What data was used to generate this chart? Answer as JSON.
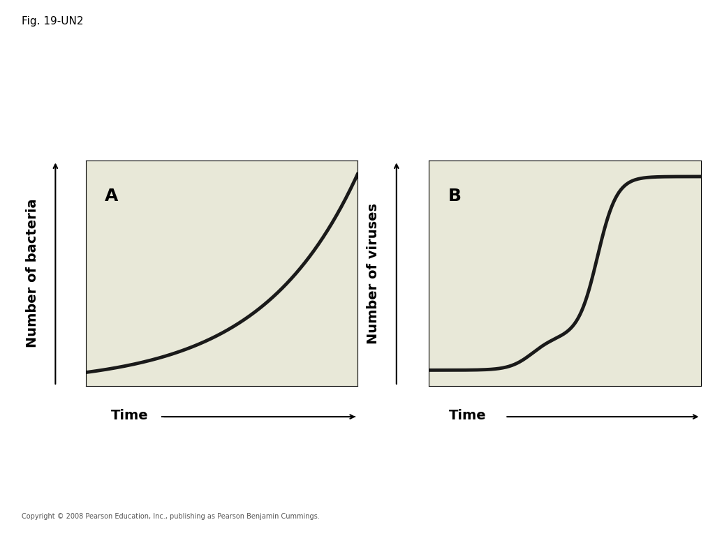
{
  "fig_label": "Fig. 19-UN2",
  "copyright": "Copyright © 2008 Pearson Education, Inc., publishing as Pearson Benjamin Cummings.",
  "bg_color": "#e8e8d8",
  "fig_bg_color": "#ffffff",
  "panel_A_label": "A",
  "panel_B_label": "B",
  "xlabel": "Time",
  "ylabel_A": "Number of bacteria",
  "ylabel_B": "Number of viruses",
  "curve_color": "#1a1a1a",
  "curve_linewidth": 3.5,
  "label_fontsize": 14,
  "panel_label_fontsize": 18,
  "fig_label_fontsize": 11
}
